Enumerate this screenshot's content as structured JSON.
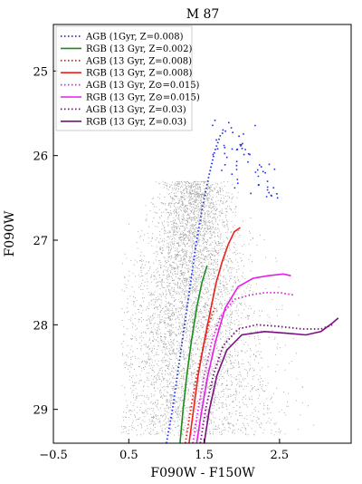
{
  "chart_data": {
    "type": "scatter",
    "title": "M 87",
    "xlabel": "F090W - F150W",
    "ylabel": "F090W",
    "xlim": [
      -0.5,
      3.45
    ],
    "ylim": [
      29.4,
      24.45
    ],
    "y_inverted": true,
    "x_ticks": [
      -0.5,
      0.5,
      1.5,
      2.5
    ],
    "x_tick_labels": [
      "−0.5",
      "0.5",
      "1.5",
      "2.5"
    ],
    "y_ticks": [
      25,
      26,
      27,
      28,
      29
    ],
    "y_tick_labels": [
      "25",
      "26",
      "27",
      "28",
      "29"
    ],
    "grid": false,
    "legend_position": "top-left",
    "colors": {
      "stars": "#000000",
      "agb_blue": "#1f2fe8",
      "green": "#1a8c1a",
      "red": "#e8231c",
      "magenta": "#e61ee6",
      "purple": "#7b0f80"
    },
    "series": [
      {
        "name": "AGB (1Gyr, Z=0.008)",
        "style": "dotted",
        "color": "#1f2fe8",
        "x": [
          1.0,
          1.08,
          1.16,
          1.24,
          1.32,
          1.4,
          1.48,
          1.56,
          1.64,
          1.72,
          1.8
        ],
        "y": [
          29.4,
          29.0,
          28.5,
          28.0,
          27.5,
          27.0,
          26.6,
          26.25,
          25.95,
          25.75,
          25.7
        ]
      },
      {
        "name": "RGB (13 Gyr, Z=0.002)",
        "style": "solid",
        "color": "#1a8c1a",
        "x": [
          1.18,
          1.22,
          1.27,
          1.33,
          1.4,
          1.47,
          1.54
        ],
        "y": [
          29.4,
          29.0,
          28.6,
          28.2,
          27.8,
          27.5,
          27.3
        ]
      },
      {
        "name": "AGB (13 Gyr, Z=0.008)",
        "style": "dotted",
        "color": "#e8231c",
        "x": [
          1.25,
          1.32,
          1.4,
          1.48,
          1.56,
          1.64
        ],
        "y": [
          29.4,
          29.0,
          28.6,
          28.3,
          28.0,
          27.8
        ]
      },
      {
        "name": "RGB (13 Gyr, Z=0.008)",
        "style": "solid",
        "color": "#e8231c",
        "x": [
          1.3,
          1.36,
          1.42,
          1.5,
          1.58,
          1.66,
          1.74,
          1.82,
          1.9,
          1.98
        ],
        "y": [
          29.4,
          29.0,
          28.6,
          28.2,
          27.85,
          27.5,
          27.25,
          27.05,
          26.9,
          26.85
        ]
      },
      {
        "name": "AGB (13 Gyr, Z⊙=0.015)",
        "style": "dotted",
        "color": "#e61ee6",
        "x": [
          1.35,
          1.42,
          1.5,
          1.6,
          1.72,
          1.9,
          2.1,
          2.3,
          2.5,
          2.7
        ],
        "y": [
          29.4,
          29.0,
          28.6,
          28.2,
          27.9,
          27.7,
          27.65,
          27.62,
          27.62,
          27.65
        ]
      },
      {
        "name": "RGB (13 Gyr, Z⊙=0.015)",
        "style": "solid",
        "color": "#e61ee6",
        "x": [
          1.4,
          1.47,
          1.55,
          1.65,
          1.78,
          1.95,
          2.15,
          2.35,
          2.55,
          2.65
        ],
        "y": [
          29.4,
          29.0,
          28.6,
          28.2,
          27.8,
          27.55,
          27.45,
          27.42,
          27.4,
          27.42
        ]
      },
      {
        "name": "AGB (13 Gyr, Z=0.03)",
        "style": "dotted",
        "color": "#7b0f80",
        "x": [
          1.45,
          1.52,
          1.62,
          1.75,
          1.95,
          2.2,
          2.5,
          2.8,
          3.05,
          3.2
        ],
        "y": [
          29.4,
          29.0,
          28.6,
          28.25,
          28.05,
          28.0,
          28.02,
          28.05,
          28.05,
          28.0
        ]
      },
      {
        "name": "RGB (13 Gyr, Z=0.03)",
        "style": "solid",
        "color": "#7b0f80",
        "x": [
          1.5,
          1.57,
          1.67,
          1.8,
          2.0,
          2.3,
          2.6,
          2.85,
          3.05,
          3.2,
          3.28
        ],
        "y": [
          29.4,
          29.0,
          28.6,
          28.3,
          28.12,
          28.08,
          28.1,
          28.12,
          28.08,
          27.98,
          27.92
        ]
      }
    ]
  }
}
